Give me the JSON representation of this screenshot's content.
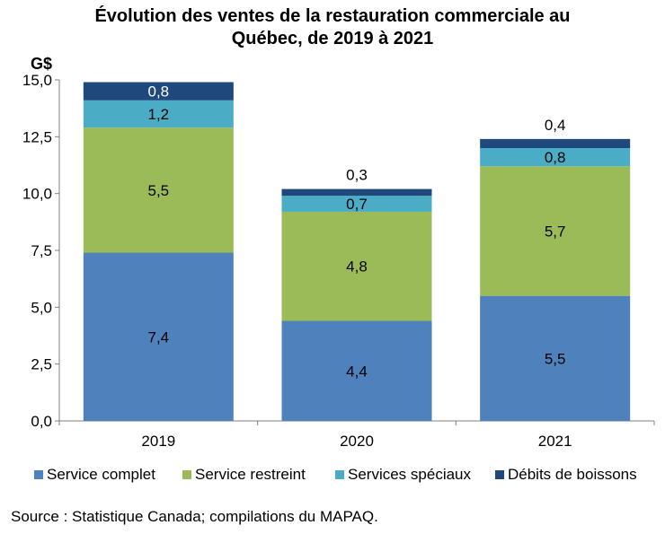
{
  "title_line1": "Évolution des ventes de la restauration commerciale au",
  "title_line2": "Québec, de 2019 à 2021",
  "source": "Source : Statistique Canada; compilations du MAPAQ.",
  "chart_data": {
    "type": "bar",
    "stacked": true,
    "title": "Évolution des ventes de la restauration commerciale au Québec, de 2019 à 2021",
    "ylabel": "G$",
    "xlabel": "",
    "categories": [
      "2019",
      "2020",
      "2021"
    ],
    "ylim": [
      0,
      15
    ],
    "yticks": [
      0,
      2.5,
      5,
      7.5,
      10,
      12.5,
      15
    ],
    "ytick_labels": [
      "0,0",
      "2,5",
      "5,0",
      "7,5",
      "10,0",
      "12,5",
      "15,0"
    ],
    "grid": false,
    "legend_position": "bottom",
    "series": [
      {
        "name": "Service complet",
        "color": "#4F81BD",
        "values": [
          7.4,
          4.4,
          5.5
        ],
        "labels": [
          "7,4",
          "4,4",
          "5,5"
        ]
      },
      {
        "name": "Service restreint",
        "color": "#9BBB59",
        "values": [
          5.5,
          4.8,
          5.7
        ],
        "labels": [
          "5,5",
          "4,8",
          "5,7"
        ]
      },
      {
        "name": "Services spéciaux",
        "color": "#4BACC6",
        "values": [
          1.2,
          0.7,
          0.8
        ],
        "labels": [
          "1,2",
          "0,7",
          "0,8"
        ]
      },
      {
        "name": "Débits de boissons",
        "color": "#1F497D",
        "values": [
          0.8,
          0.3,
          0.4
        ],
        "labels": [
          "0,8",
          "0,3",
          "0,4"
        ]
      }
    ]
  }
}
